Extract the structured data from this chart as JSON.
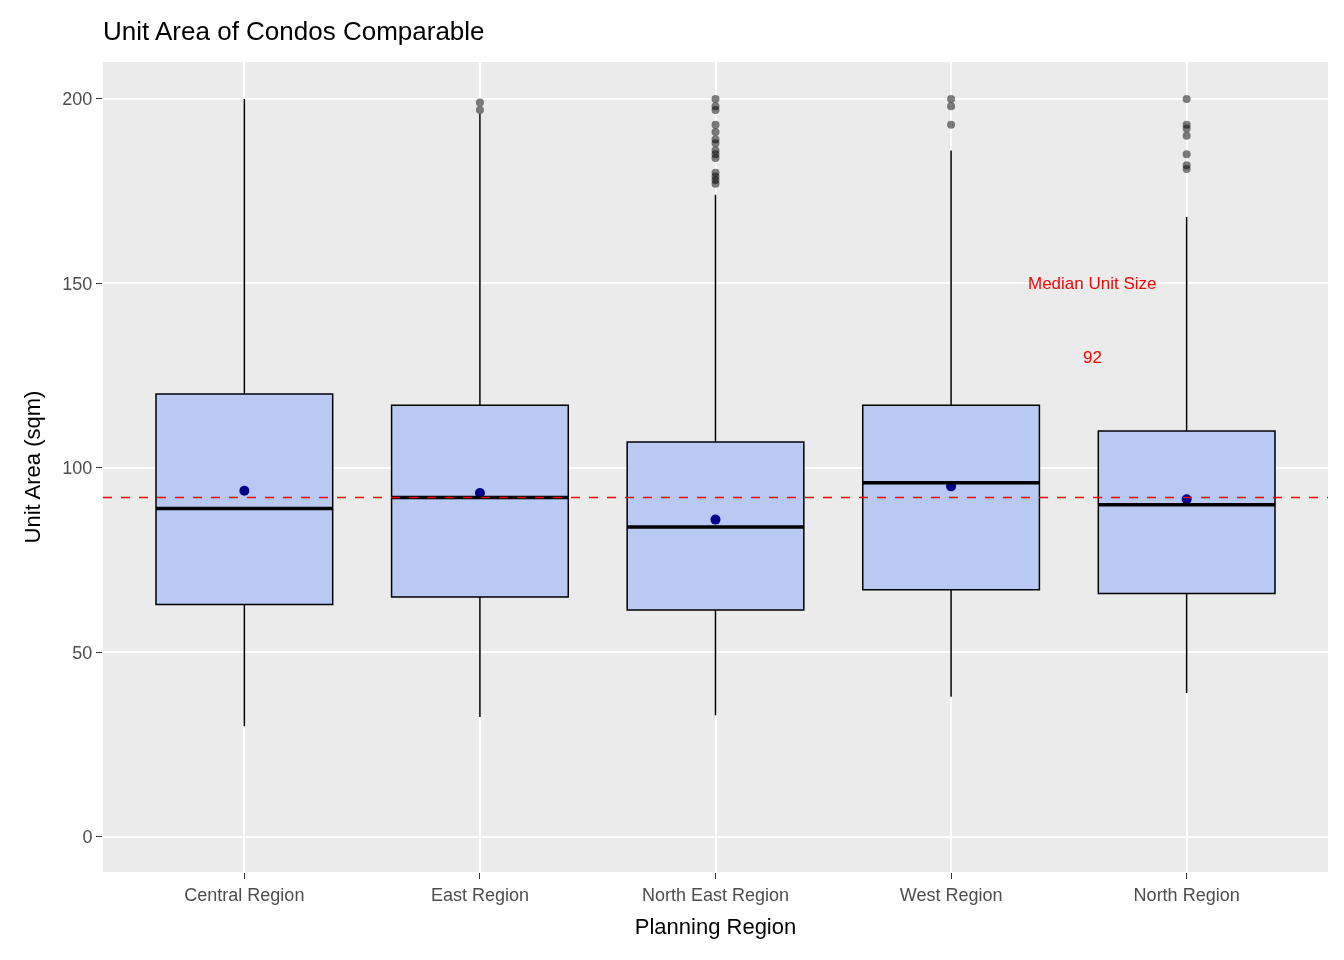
{
  "chart_data": {
    "type": "box",
    "title": "Unit Area of Condos Comparable",
    "xlabel": "Planning Region",
    "ylabel": "Unit Area (sqm)",
    "categories": [
      "Central Region",
      "East Region",
      "North East Region",
      "West Region",
      "North Region"
    ],
    "boxes": [
      {
        "low": 30,
        "q1": 63,
        "median": 89,
        "q3": 120,
        "high": 200,
        "mean": 93.8
      },
      {
        "low": 32.5,
        "q1": 65,
        "median": 92,
        "q3": 117,
        "high": 196,
        "mean": 93.2,
        "outliers": [
          199,
          197
        ]
      },
      {
        "low": 33,
        "q1": 61.5,
        "median": 84,
        "q3": 107,
        "high": 174,
        "mean": 86,
        "outliers": [
          200,
          198,
          197,
          193,
          191,
          189,
          188,
          186,
          185,
          184,
          180,
          179,
          178,
          177
        ]
      },
      {
        "low": 38,
        "q1": 67,
        "median": 96,
        "q3": 117,
        "high": 186,
        "mean": 95,
        "outliers": [
          200,
          198,
          193
        ]
      },
      {
        "low": 39,
        "q1": 66,
        "median": 90,
        "q3": 110,
        "high": 168,
        "mean": 91.5,
        "outliers": [
          200,
          193,
          192,
          190,
          185,
          182,
          181
        ]
      }
    ],
    "color": "#b8c9f3",
    "ylim": [
      -9.5,
      210
    ],
    "yticks": [
      0,
      50,
      100,
      150,
      200
    ],
    "grid": true,
    "ref_lines": [
      {
        "axis": "y",
        "value": 92,
        "color": "#ff0000",
        "line_style": "dashed"
      }
    ],
    "annotations": [
      "Median Unit Size",
      "92"
    ]
  }
}
